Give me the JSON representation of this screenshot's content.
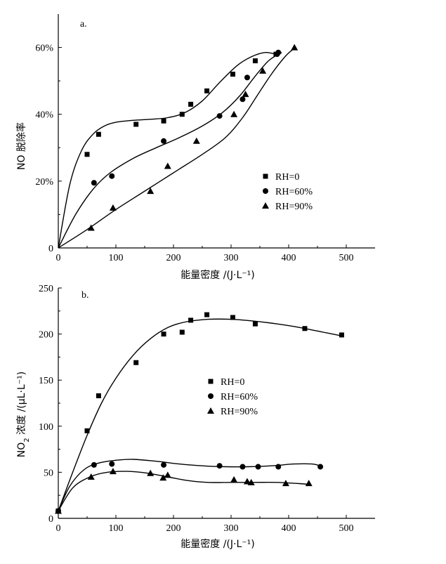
{
  "chart_data": [
    {
      "type": "scatter",
      "panel_label": "a.",
      "xlabel": "能量密度 /(J·L⁻¹)",
      "ylabel": "NO 脱除率",
      "xlim": [
        0,
        550
      ],
      "ylim": [
        0,
        0.7
      ],
      "x_ticks": [
        "0",
        "100",
        "200",
        "300",
        "400",
        "500"
      ],
      "y_ticks": [
        "0",
        "20%",
        "40%",
        "60%"
      ],
      "legend_position": "right-middle",
      "series": [
        {
          "name": "RH=0",
          "marker": "square",
          "points": [
            [
              50,
              0.28
            ],
            [
              70,
              0.34
            ],
            [
              135,
              0.37
            ],
            [
              183,
              0.38
            ],
            [
              215,
              0.4
            ],
            [
              230,
              0.43
            ],
            [
              258,
              0.47
            ],
            [
              303,
              0.52
            ],
            [
              342,
              0.56
            ],
            [
              378,
              0.58
            ]
          ],
          "curve": [
            [
              0,
              0.0
            ],
            [
              20,
              0.19
            ],
            [
              40,
              0.29
            ],
            [
              60,
              0.34
            ],
            [
              80,
              0.365
            ],
            [
              100,
              0.376
            ],
            [
              130,
              0.382
            ],
            [
              160,
              0.385
            ],
            [
              190,
              0.39
            ],
            [
              220,
              0.405
            ],
            [
              250,
              0.44
            ],
            [
              280,
              0.495
            ],
            [
              310,
              0.545
            ],
            [
              335,
              0.572
            ],
            [
              360,
              0.585
            ],
            [
              383,
              0.577
            ]
          ]
        },
        {
          "name": "RH=60%",
          "marker": "circle",
          "points": [
            [
              62,
              0.195
            ],
            [
              93,
              0.215
            ],
            [
              183,
              0.32
            ],
            [
              280,
              0.395
            ],
            [
              320,
              0.445
            ],
            [
              328,
              0.51
            ],
            [
              380,
              0.58
            ],
            [
              382,
              0.585
            ]
          ],
          "curve": [
            [
              0,
              0.0
            ],
            [
              30,
              0.1
            ],
            [
              60,
              0.175
            ],
            [
              90,
              0.225
            ],
            [
              130,
              0.268
            ],
            [
              170,
              0.3
            ],
            [
              210,
              0.33
            ],
            [
              250,
              0.365
            ],
            [
              285,
              0.405
            ],
            [
              315,
              0.455
            ],
            [
              340,
              0.51
            ],
            [
              365,
              0.56
            ],
            [
              388,
              0.585
            ]
          ]
        },
        {
          "name": "RH=90%",
          "marker": "triangle",
          "points": [
            [
              57,
              0.06
            ],
            [
              95,
              0.12
            ],
            [
              160,
              0.17
            ],
            [
              190,
              0.245
            ],
            [
              240,
              0.32
            ],
            [
              305,
              0.4
            ],
            [
              325,
              0.46
            ],
            [
              355,
              0.53
            ],
            [
              410,
              0.6
            ]
          ],
          "curve": [
            [
              0,
              0.0
            ],
            [
              50,
              0.055
            ],
            [
              100,
              0.115
            ],
            [
              150,
              0.17
            ],
            [
              200,
              0.225
            ],
            [
              250,
              0.28
            ],
            [
              290,
              0.33
            ],
            [
              320,
              0.39
            ],
            [
              345,
              0.455
            ],
            [
              370,
              0.52
            ],
            [
              395,
              0.575
            ],
            [
              412,
              0.6
            ]
          ]
        }
      ],
      "legend": [
        "RH=0",
        "RH=60%",
        "RH=90%"
      ]
    },
    {
      "type": "scatter",
      "panel_label": "b.",
      "xlabel": "能量密度 /(J·L⁻¹)",
      "ylabel_main": "NO",
      "ylabel_sub": "2",
      "ylabel_rest": " 浓度 /(μL·L⁻¹)",
      "xlim": [
        0,
        550
      ],
      "ylim": [
        0,
        250
      ],
      "x_ticks": [
        "0",
        "100",
        "200",
        "300",
        "400",
        "500"
      ],
      "y_ticks": [
        "0",
        "50",
        "100",
        "150",
        "200",
        "250"
      ],
      "legend_position": "center-left",
      "series": [
        {
          "name": "RH=0",
          "marker": "square",
          "points": [
            [
              0,
              8
            ],
            [
              50,
              95
            ],
            [
              70,
              133
            ],
            [
              135,
              169
            ],
            [
              183,
              200
            ],
            [
              215,
              202
            ],
            [
              230,
              215
            ],
            [
              258,
              221
            ],
            [
              303,
              218
            ],
            [
              342,
              211
            ],
            [
              428,
              206
            ],
            [
              492,
              199
            ]
          ],
          "curve": [
            [
              0,
              8
            ],
            [
              25,
              50
            ],
            [
              50,
              90
            ],
            [
              75,
              125
            ],
            [
              100,
              152
            ],
            [
              130,
              177
            ],
            [
              160,
              195
            ],
            [
              190,
              207
            ],
            [
              220,
              213
            ],
            [
              260,
              216
            ],
            [
              300,
              216
            ],
            [
              340,
              214
            ],
            [
              380,
              211
            ],
            [
              420,
              207
            ],
            [
              460,
              202
            ],
            [
              492,
              198
            ]
          ]
        },
        {
          "name": "RH=60%",
          "marker": "circle",
          "points": [
            [
              0,
              8
            ],
            [
              62,
              58
            ],
            [
              93,
              59
            ],
            [
              183,
              58
            ],
            [
              280,
              57
            ],
            [
              320,
              56
            ],
            [
              347,
              56
            ],
            [
              382,
              56
            ],
            [
              455,
              56
            ]
          ],
          "curve": [
            [
              0,
              8
            ],
            [
              20,
              35
            ],
            [
              45,
              53
            ],
            [
              70,
              60
            ],
            [
              100,
              63
            ],
            [
              130,
              64
            ],
            [
              170,
              62
            ],
            [
              210,
              59
            ],
            [
              250,
              57
            ],
            [
              290,
              56
            ],
            [
              330,
              56
            ],
            [
              370,
              57
            ],
            [
              410,
              59
            ],
            [
              440,
              59
            ],
            [
              455,
              57
            ]
          ]
        },
        {
          "name": "RH=90%",
          "marker": "triangle",
          "points": [
            [
              0,
              8
            ],
            [
              57,
              45
            ],
            [
              95,
              51
            ],
            [
              160,
              49
            ],
            [
              182,
              44
            ],
            [
              190,
              47
            ],
            [
              305,
              42
            ],
            [
              328,
              40
            ],
            [
              335,
              39
            ],
            [
              395,
              38
            ],
            [
              435,
              38
            ]
          ],
          "curve": [
            [
              0,
              8
            ],
            [
              25,
              33
            ],
            [
              55,
              45
            ],
            [
              85,
              50
            ],
            [
              120,
              51
            ],
            [
              155,
              49
            ],
            [
              190,
              45
            ],
            [
              225,
              41
            ],
            [
              260,
              39
            ],
            [
              300,
              39
            ],
            [
              340,
              39
            ],
            [
              380,
              39
            ],
            [
              410,
              38
            ],
            [
              435,
              37
            ]
          ]
        }
      ],
      "legend": [
        "RH=0",
        "RH=60%",
        "RH=90%"
      ]
    }
  ]
}
